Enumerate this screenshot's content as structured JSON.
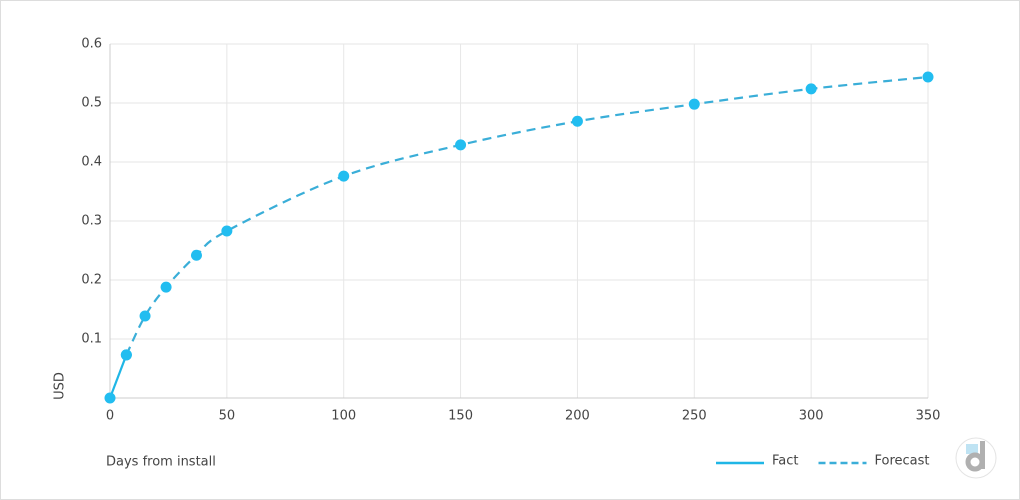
{
  "chart_data": {
    "type": "line",
    "x_label": "Days from install",
    "y_label": "USD",
    "xlim": [
      0,
      350
    ],
    "ylim": [
      0,
      0.6
    ],
    "xticks": [
      0,
      50,
      100,
      150,
      200,
      250,
      300,
      350
    ],
    "yticks": [
      0.1,
      0.2,
      0.3,
      0.4,
      0.5,
      0.6
    ],
    "grid": true,
    "legend": "bottom-right",
    "markers": true,
    "series": [
      {
        "name": "Fact",
        "color": "#1fb6e6",
        "dash": false,
        "x": [
          0,
          7
        ],
        "values": [
          0,
          0.073
        ]
      },
      {
        "name": "Forecast",
        "color": "#3aaed8",
        "dash": true,
        "x": [
          7,
          15,
          24,
          37,
          50,
          100,
          150,
          200,
          250,
          300,
          350
        ],
        "values": [
          0.073,
          0.139,
          0.188,
          0.242,
          0.283,
          0.376,
          0.429,
          0.469,
          0.498,
          0.524,
          0.544
        ]
      }
    ]
  }
}
